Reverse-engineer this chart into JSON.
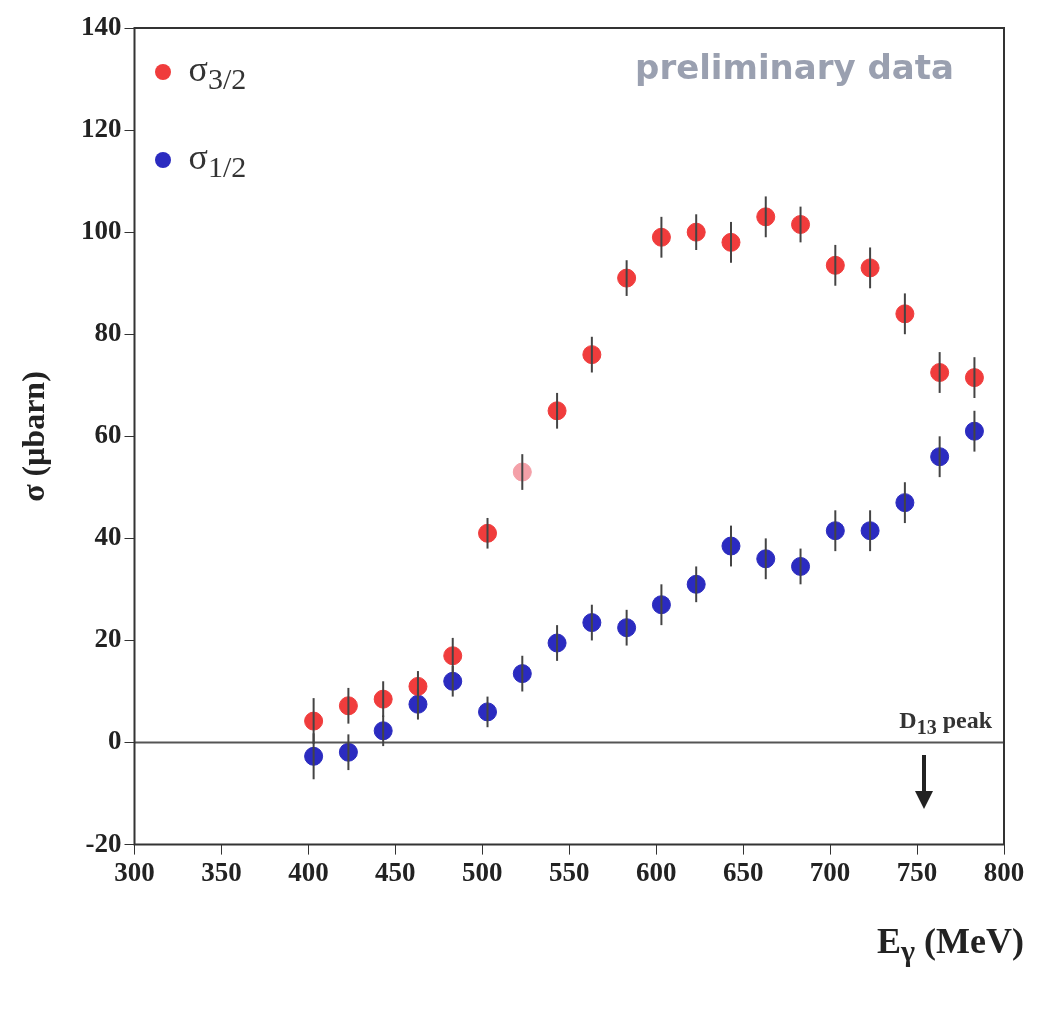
{
  "chart_data": {
    "type": "scatter",
    "xlabel": "E$_{γ}$ (MeV)",
    "ylabel": "σ  (μbarn)",
    "x": [
      403,
      423,
      443,
      463,
      483,
      503,
      523,
      543,
      563,
      583,
      603,
      623,
      643,
      663,
      683,
      703,
      723,
      743,
      763,
      783
    ],
    "series": [
      {
        "name": "σ$_{3/2}$",
        "color": "#f03c3c",
        "colors": [
          "#f03c3c",
          "#f03c3c",
          "#f03c3c",
          "#f03c3c",
          "#f03c3c",
          "#f03c3c",
          "#f4a0a8",
          "#f03c3c",
          "#f03c3c",
          "#f03c3c",
          "#f03c3c",
          "#f03c3c",
          "#f03c3c",
          "#f03c3c",
          "#f03c3c",
          "#f03c3c",
          "#f03c3c",
          "#f03c3c",
          "#f03c3c",
          "#f03c3c"
        ],
        "values": [
          4.2,
          7.2,
          8.5,
          11,
          17,
          41,
          53,
          65,
          76,
          91,
          99,
          100,
          98,
          103,
          101.5,
          93.5,
          93,
          84,
          72.5,
          71.5
        ],
        "errors": [
          4.5,
          3.5,
          3.5,
          3,
          3.5,
          3,
          3.5,
          3.5,
          3.5,
          3.5,
          4,
          3.5,
          4,
          4,
          3.5,
          4,
          4,
          4,
          4,
          4
        ]
      },
      {
        "name": "σ$_{1/2}$",
        "color": "#2b2bc0",
        "values": [
          -2.7,
          -1.9,
          2.3,
          7.5,
          12,
          6,
          13.5,
          19.5,
          23.5,
          22.5,
          27,
          31,
          38.5,
          36,
          34.5,
          41.5,
          41.5,
          47,
          56,
          61
        ],
        "errors": [
          4.5,
          3.5,
          3,
          3,
          3,
          3,
          3.5,
          3.5,
          3.5,
          3.5,
          4,
          3.5,
          4,
          4,
          3.5,
          4,
          4,
          4,
          4,
          4
        ]
      }
    ],
    "xlim": [
      300,
      800
    ],
    "xticks": [
      300,
      350,
      400,
      450,
      500,
      550,
      600,
      650,
      700,
      750,
      800
    ],
    "ylim": [
      -20,
      140
    ],
    "yticks": [
      -20,
      0,
      20,
      40,
      60,
      80,
      100,
      120,
      140
    ],
    "ref_lines": [
      {
        "axis": "y",
        "value": 0,
        "color": "#555555"
      }
    ],
    "annotations": [
      "preliminary data",
      "D$_{13}$ peak"
    ],
    "legend": "top left",
    "grid": false,
    "marker": "circle"
  }
}
